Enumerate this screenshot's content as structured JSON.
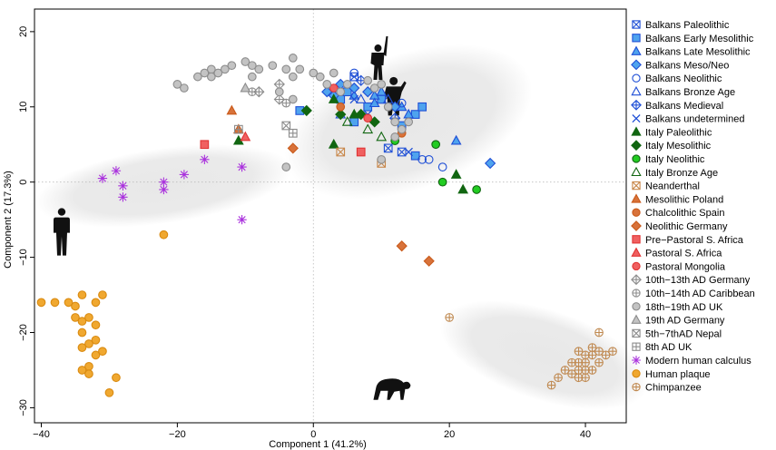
{
  "chart_data": {
    "type": "scatter",
    "xlabel": "Component 1 (41.2%)",
    "ylabel": "Component 2 (17.3%)",
    "xlim": [
      -41,
      46
    ],
    "ylim": [
      -32,
      23
    ],
    "xticks": [
      -40,
      -20,
      0,
      20,
      40
    ],
    "yticks": [
      -30,
      -20,
      -10,
      0,
      10,
      20
    ],
    "grid": false,
    "zero_lines": true,
    "legend_position": "right",
    "colors": {
      "balkans": "#1f4fd6",
      "balkans_fill": "#4fa3ee",
      "italy_dark": "#116611",
      "italy_light": "#22cc22",
      "neanderthal": "#c8874a",
      "chalcolithic": "#c95a1a",
      "pre_pastoral": "#e03333",
      "modern_gray": "#8c8c8c",
      "modern_fill": "#c3c3c3",
      "calculus": "#aa33dd",
      "plaque": "#f0a830",
      "chimp": "#c08a52",
      "shade": "#e8e8e8"
    },
    "series": [
      {
        "name": "Balkans Paleolithic",
        "marker": "square-x",
        "color": "#1f4fd6",
        "fill": "none",
        "points": [
          [
            6,
            14
          ],
          [
            11,
            4.5
          ],
          [
            13,
            4
          ]
        ]
      },
      {
        "name": "Balkans Early Mesolithic",
        "marker": "square",
        "color": "#1f4fd6",
        "fill": "#4fa3ee",
        "points": [
          [
            -2,
            9.5
          ],
          [
            4,
            11
          ],
          [
            5,
            12
          ],
          [
            8,
            10
          ],
          [
            10,
            11
          ],
          [
            13,
            7.5
          ],
          [
            15,
            9
          ],
          [
            16,
            10
          ],
          [
            6,
            8
          ],
          [
            15,
            3.5
          ]
        ]
      },
      {
        "name": "Balkans Late Mesolithic",
        "marker": "triangle",
        "color": "#1f4fd6",
        "fill": "#4fa3ee",
        "points": [
          [
            6,
            11.5
          ],
          [
            9,
            11.5
          ],
          [
            10,
            12
          ],
          [
            13,
            10
          ],
          [
            14,
            9
          ],
          [
            21,
            5.5
          ],
          [
            9,
            10.5
          ]
        ]
      },
      {
        "name": "Balkans Meso/Neo",
        "marker": "diamond",
        "color": "#1f4fd6",
        "fill": "#4fa3ee",
        "points": [
          [
            2,
            12
          ],
          [
            4,
            13
          ],
          [
            6,
            12.5
          ],
          [
            8,
            12
          ],
          [
            12,
            10
          ],
          [
            26,
            2.5
          ],
          [
            3,
            11.5
          ]
        ]
      },
      {
        "name": "Balkans Neolithic",
        "marker": "circle",
        "color": "#1f4fd6",
        "fill": "none",
        "points": [
          [
            6,
            14.5
          ],
          [
            13,
            10.5
          ],
          [
            16,
            3
          ],
          [
            17,
            3
          ],
          [
            19,
            2
          ]
        ]
      },
      {
        "name": "Balkans Bronze Age",
        "marker": "triangle",
        "color": "#1f4fd6",
        "fill": "none",
        "points": [
          [
            7,
            11
          ],
          [
            11,
            11
          ],
          [
            4,
            9
          ]
        ]
      },
      {
        "name": "Balkans Medieval",
        "marker": "diamond-plus",
        "color": "#1f4fd6",
        "fill": "none",
        "points": [
          [
            7,
            13.5
          ],
          [
            12,
            8.5
          ]
        ]
      },
      {
        "name": "Balkans undetermined",
        "marker": "x",
        "color": "#1f4fd6",
        "fill": "none",
        "points": [
          [
            8,
            9
          ],
          [
            14,
            4
          ],
          [
            6,
            11
          ]
        ]
      },
      {
        "name": "Italy Paleolithic",
        "marker": "triangle",
        "color": "#116611",
        "fill": "#116611",
        "points": [
          [
            3,
            11
          ],
          [
            3,
            5
          ],
          [
            6,
            9
          ],
          [
            21,
            1
          ],
          [
            22,
            -1
          ],
          [
            -11,
            5.5
          ]
        ]
      },
      {
        "name": "Italy Mesolithic",
        "marker": "diamond",
        "color": "#116611",
        "fill": "#116611",
        "points": [
          [
            -1,
            9.5
          ],
          [
            4,
            9
          ],
          [
            7,
            9
          ],
          [
            9,
            8
          ]
        ]
      },
      {
        "name": "Italy Neolithic",
        "marker": "circle",
        "color": "#116611",
        "fill": "#22cc22",
        "points": [
          [
            12,
            5.5
          ],
          [
            18,
            5
          ],
          [
            19,
            0
          ],
          [
            24,
            -1
          ]
        ]
      },
      {
        "name": "Italy Bronze Age",
        "marker": "triangle",
        "color": "#116611",
        "fill": "none",
        "points": [
          [
            10,
            6
          ],
          [
            8,
            7
          ],
          [
            5,
            8
          ]
        ]
      },
      {
        "name": "Neanderthal",
        "marker": "square-x",
        "color": "#c8874a",
        "fill": "none",
        "points": [
          [
            4,
            4
          ],
          [
            10,
            2.5
          ]
        ]
      },
      {
        "name": "Mesolithic Poland",
        "marker": "triangle",
        "color": "#c95a1a",
        "fill": "#d8723a",
        "points": [
          [
            -12,
            9.5
          ],
          [
            -11,
            7
          ]
        ]
      },
      {
        "name": "Chalcolithic Spain",
        "marker": "circle",
        "color": "#c95a1a",
        "fill": "#d8723a",
        "points": [
          [
            4,
            10
          ],
          [
            13,
            6.5
          ]
        ]
      },
      {
        "name": "Neolithic Germany",
        "marker": "diamond",
        "color": "#c95a1a",
        "fill": "#d8723a",
        "points": [
          [
            -3,
            4.5
          ],
          [
            13,
            -8.5
          ],
          [
            17,
            -10.5
          ]
        ]
      },
      {
        "name": "Pre−Pastoral S. Africa",
        "marker": "square",
        "color": "#e03333",
        "fill": "#f06060",
        "points": [
          [
            -16,
            5
          ],
          [
            7,
            4
          ]
        ]
      },
      {
        "name": "Pastoral S. Africa",
        "marker": "triangle",
        "color": "#e03333",
        "fill": "#f06060",
        "points": [
          [
            -10,
            6
          ]
        ]
      },
      {
        "name": "Pastoral Mongolia",
        "marker": "circle",
        "color": "#e03333",
        "fill": "#f06060",
        "points": [
          [
            3,
            12.5
          ],
          [
            8,
            8.5
          ]
        ]
      },
      {
        "name": "10th−13th AD Germany",
        "marker": "diamond-plus",
        "color": "#8c8c8c",
        "fill": "none",
        "points": [
          [
            -5,
            13
          ],
          [
            -8,
            12
          ],
          [
            -5,
            11
          ]
        ]
      },
      {
        "name": "10th−14th AD Caribbean",
        "marker": "circle-plus",
        "color": "#8c8c8c",
        "fill": "none",
        "points": [
          [
            -4,
            10.5
          ],
          [
            -9,
            12
          ]
        ]
      },
      {
        "name": "18th−19th AD UK",
        "marker": "circle",
        "color": "#8c8c8c",
        "fill": "#c3c3c3",
        "points": [
          [
            -20,
            13
          ],
          [
            -19,
            12.5
          ],
          [
            -17,
            14
          ],
          [
            -16,
            14.5
          ],
          [
            -15,
            15
          ],
          [
            -15,
            14
          ],
          [
            -14,
            14.5
          ],
          [
            -13,
            15
          ],
          [
            -12,
            15.5
          ],
          [
            -10,
            16
          ],
          [
            -9,
            15.5
          ],
          [
            -9,
            14
          ],
          [
            -8,
            15
          ],
          [
            -6,
            15.5
          ],
          [
            -4,
            15
          ],
          [
            -3,
            16.5
          ],
          [
            -3,
            14
          ],
          [
            -2,
            15
          ],
          [
            -5,
            12
          ],
          [
            -4,
            2
          ],
          [
            0,
            14.5
          ],
          [
            1,
            14
          ],
          [
            2,
            13
          ],
          [
            3,
            14.5
          ],
          [
            4,
            12
          ],
          [
            5,
            13
          ],
          [
            8,
            13.5
          ],
          [
            9,
            12.5
          ],
          [
            10,
            13
          ],
          [
            11,
            10
          ],
          [
            12,
            8
          ],
          [
            13,
            7
          ],
          [
            14,
            8
          ],
          [
            12,
            6
          ],
          [
            10,
            3
          ],
          [
            -3,
            11
          ]
        ]
      },
      {
        "name": "19th AD Germany",
        "marker": "triangle",
        "color": "#8c8c8c",
        "fill": "#c3c3c3",
        "points": [
          [
            -10,
            12.5
          ]
        ]
      },
      {
        "name": "5th−7thAD Nepal",
        "marker": "square-x",
        "color": "#8c8c8c",
        "fill": "none",
        "points": [
          [
            -4,
            7.5
          ]
        ]
      },
      {
        "name": "8th AD UK",
        "marker": "square-plus",
        "color": "#8c8c8c",
        "fill": "none",
        "points": [
          [
            -11,
            7
          ],
          [
            -3,
            6.5
          ]
        ]
      },
      {
        "name": "Modern human calculus",
        "marker": "asterisk",
        "color": "#aa33dd",
        "fill": "none",
        "points": [
          [
            -31,
            0.5
          ],
          [
            -29,
            1.5
          ],
          [
            -28,
            -0.5
          ],
          [
            -28,
            -2
          ],
          [
            -22,
            0
          ],
          [
            -22,
            -1
          ],
          [
            -19,
            1
          ],
          [
            -16,
            3
          ],
          [
            -10.5,
            2
          ],
          [
            -10.5,
            -5
          ]
        ]
      },
      {
        "name": "Human plaque",
        "marker": "circle",
        "color": "#d98a10",
        "fill": "#f0a830",
        "points": [
          [
            -40,
            -16
          ],
          [
            -38,
            -16
          ],
          [
            -36,
            -16
          ],
          [
            -35,
            -16.5
          ],
          [
            -34,
            -15
          ],
          [
            -35,
            -18
          ],
          [
            -34,
            -18.5
          ],
          [
            -33,
            -18
          ],
          [
            -32,
            -16
          ],
          [
            -31,
            -15
          ],
          [
            -32,
            -19
          ],
          [
            -34,
            -20
          ],
          [
            -33,
            -21.5
          ],
          [
            -32,
            -21
          ],
          [
            -34,
            -22
          ],
          [
            -32,
            -23
          ],
          [
            -31,
            -22.5
          ],
          [
            -33,
            -24.5
          ],
          [
            -34,
            -25
          ],
          [
            -33,
            -25.5
          ],
          [
            -29,
            -26
          ],
          [
            -30,
            -28
          ],
          [
            -22,
            -7
          ]
        ]
      },
      {
        "name": "Chimpanzee",
        "marker": "circle-plus",
        "color": "#c08a52",
        "fill": "none",
        "points": [
          [
            20,
            -18
          ],
          [
            35,
            -27
          ],
          [
            36,
            -26
          ],
          [
            37,
            -25
          ],
          [
            38,
            -24
          ],
          [
            38,
            -25.5
          ],
          [
            39,
            -24
          ],
          [
            39,
            -25
          ],
          [
            39,
            -26
          ],
          [
            40,
            -23
          ],
          [
            40,
            -25
          ],
          [
            40,
            -26
          ],
          [
            41,
            -22
          ],
          [
            41,
            -23
          ],
          [
            41,
            -25
          ],
          [
            42,
            -24
          ],
          [
            42,
            -22.5
          ],
          [
            43,
            -23
          ],
          [
            44,
            -22.5
          ],
          [
            42,
            -20
          ],
          [
            39,
            -22.5
          ],
          [
            40,
            -24
          ]
        ]
      }
    ],
    "shaded_regions": [
      {
        "center": [
          14,
          8
        ],
        "rx": 19,
        "ry": 9,
        "rotate_deg": -20
      },
      {
        "center": [
          -22,
          -0.5
        ],
        "rx": 19,
        "ry": 5,
        "rotate_deg": -8
      },
      {
        "center": [
          34,
          -23
        ],
        "rx": 16,
        "ry": 6,
        "rotate_deg": 18
      }
    ],
    "silhouettes": [
      {
        "icon": "soldier-icon",
        "x": 9.5,
        "y": 16
      },
      {
        "icon": "medieval-figure-icon",
        "x": 11.8,
        "y": 11.5
      },
      {
        "icon": "modern-human-icon",
        "x": -37,
        "y": -6.5
      },
      {
        "icon": "chimpanzee-icon",
        "x": 11.5,
        "y": -27.5
      }
    ]
  }
}
